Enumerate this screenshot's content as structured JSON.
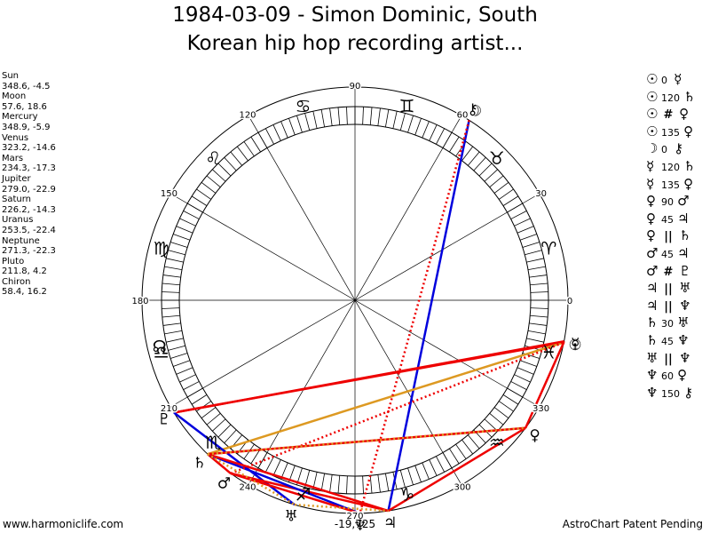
{
  "title_line1": "1984-03-09 - Simon Dominic, South",
  "title_line2": "Korean hip hop recording artist...",
  "planets": [
    {
      "name": "Sun",
      "glyph": "☉",
      "lon": 348.6,
      "lat": -4.5,
      "coords": "348.6, -4.5"
    },
    {
      "name": "Moon",
      "glyph": "☽",
      "lon": 57.6,
      "lat": 18.6,
      "coords": "57.6, 18.6"
    },
    {
      "name": "Mercury",
      "glyph": "☿",
      "lon": 348.9,
      "lat": -5.9,
      "coords": "348.9, -5.9"
    },
    {
      "name": "Venus",
      "glyph": "♀",
      "lon": 323.2,
      "lat": -14.6,
      "coords": "323.2, -14.6"
    },
    {
      "name": "Mars",
      "glyph": "♂",
      "lon": 234.3,
      "lat": -17.3,
      "coords": "234.3, -17.3"
    },
    {
      "name": "Jupiter",
      "glyph": "♃",
      "lon": 279.0,
      "lat": -22.9,
      "coords": "279.0, -22.9"
    },
    {
      "name": "Saturn",
      "glyph": "♄",
      "lon": 226.2,
      "lat": -14.3,
      "coords": "226.2, -14.3"
    },
    {
      "name": "Uranus",
      "glyph": "♅",
      "lon": 253.5,
      "lat": -22.4,
      "coords": "253.5, -22.4"
    },
    {
      "name": "Neptune",
      "glyph": "♆",
      "lon": 271.3,
      "lat": -22.3,
      "coords": "271.3, -22.3"
    },
    {
      "name": "Pluto",
      "glyph": "♇",
      "lon": 211.8,
      "lat": 4.2,
      "coords": "211.8, 4.2"
    },
    {
      "name": "Chiron",
      "glyph": "⚷",
      "lon": 58.4,
      "lat": 16.2,
      "coords": "58.4, 16.2"
    }
  ],
  "aspects": [
    {
      "p1": "☉",
      "deg": "0",
      "p2": "☿",
      "type": "conjunction"
    },
    {
      "p1": "☉",
      "deg": "120",
      "p2": "♄",
      "type": "trine"
    },
    {
      "p1": "☉",
      "sym": "#",
      "p2": "♀",
      "type": "contraparallel"
    },
    {
      "p1": "☉",
      "deg": "135",
      "p2": "♀",
      "type": "sesquiquadrate"
    },
    {
      "p1": "☽",
      "deg": "0",
      "p2": "⚷",
      "type": "conjunction"
    },
    {
      "p1": "☿",
      "deg": "120",
      "p2": "♄",
      "type": "trine"
    },
    {
      "p1": "☿",
      "deg": "135",
      "p2": "♀",
      "type": "sesquiquadrate"
    },
    {
      "p1": "♀",
      "deg": "90",
      "p2": "♂",
      "type": "square"
    },
    {
      "p1": "♀",
      "deg": "45",
      "p2": "♃",
      "type": "semisquare"
    },
    {
      "p1": "♀",
      "sym": "||",
      "p2": "♄",
      "type": "parallel"
    },
    {
      "p1": "♂",
      "deg": "45",
      "p2": "♃",
      "type": "semisquare"
    },
    {
      "p1": "♂",
      "sym": "#",
      "p2": "♇",
      "type": "contraparallel"
    },
    {
      "p1": "♃",
      "sym": "||",
      "p2": "♅",
      "type": "parallel"
    },
    {
      "p1": "♃",
      "sym": "||",
      "p2": "♆",
      "type": "parallel"
    },
    {
      "p1": "♄",
      "deg": "30",
      "p2": "♅",
      "type": "semisextile"
    },
    {
      "p1": "♄",
      "deg": "45",
      "p2": "♆",
      "type": "semisquare"
    },
    {
      "p1": "♅",
      "sym": "||",
      "p2": "♆",
      "type": "parallel"
    },
    {
      "p1": "♆",
      "deg": "60",
      "p2": "♀",
      "type": "sextile"
    },
    {
      "p1": "♆",
      "deg": "150",
      "p2": "⚷",
      "type": "quincunx"
    }
  ],
  "wheel": {
    "degree_labels": [
      "0",
      "30",
      "60",
      "90",
      "120",
      "150",
      "180",
      "210",
      "240",
      "270",
      "300",
      "330"
    ],
    "sign_glyphs": [
      "♈",
      "♉",
      "♊",
      "♋",
      "♌",
      "♍",
      "♎",
      "♏",
      "♐",
      "♑",
      "♒",
      "♓"
    ],
    "node_glyph": "☊",
    "declination_label": "-19,725"
  },
  "chart_lines": [
    {
      "from": "Moon",
      "to": "Jupiter",
      "color": "#0000dd",
      "style": "solid"
    },
    {
      "from": "Sun",
      "to": "Pluto",
      "color": "#ee0000",
      "style": "solid"
    },
    {
      "from": "Sun",
      "to": "Saturn",
      "color": "#dd9922",
      "style": "solid"
    },
    {
      "from": "Sun",
      "to": "Venus",
      "color": "#ee0000",
      "style": "solid"
    },
    {
      "from": "Pluto",
      "to": "Mercury",
      "color": "#ee0000",
      "style": "solid"
    },
    {
      "from": "Pluto",
      "to": "Uranus",
      "color": "#0000dd",
      "style": "solid"
    },
    {
      "from": "Venus",
      "to": "Saturn",
      "color": "#ee0000",
      "style": "solid"
    },
    {
      "from": "Venus",
      "to": "Jupiter",
      "color": "#ee0000",
      "style": "solid"
    },
    {
      "from": "Saturn",
      "to": "Mars",
      "color": "#ee0000",
      "style": "solid"
    },
    {
      "from": "Mars",
      "to": "Jupiter",
      "color": "#ee0000",
      "style": "solid"
    },
    {
      "from": "Saturn",
      "to": "Neptune",
      "color": "#0000dd",
      "style": "solid"
    },
    {
      "from": "Mars",
      "to": "Neptune",
      "color": "#ee0000",
      "style": "solid"
    },
    {
      "from": "Saturn",
      "to": "Jupiter",
      "color": "#ee0000",
      "style": "solid"
    },
    {
      "from": "Mars",
      "to": "Sun",
      "color": "#ee0000",
      "style": "dotted"
    },
    {
      "from": "Moon",
      "to": "Neptune",
      "color": "#ee0000",
      "style": "dotted"
    },
    {
      "from": "Saturn",
      "to": "Venus",
      "color": "#dd9922",
      "style": "dotted"
    },
    {
      "from": "Uranus",
      "to": "Jupiter",
      "color": "#dd9922",
      "style": "dotted"
    },
    {
      "from": "Saturn",
      "to": "Uranus",
      "color": "#dd9922",
      "style": "dotted"
    },
    {
      "from": "Sun",
      "to": "Mercury",
      "color": "#ee0000",
      "style": "solid"
    }
  ],
  "footer_left": "www.harmoniclife.com",
  "footer_right": "AstroChart Patent Pending"
}
